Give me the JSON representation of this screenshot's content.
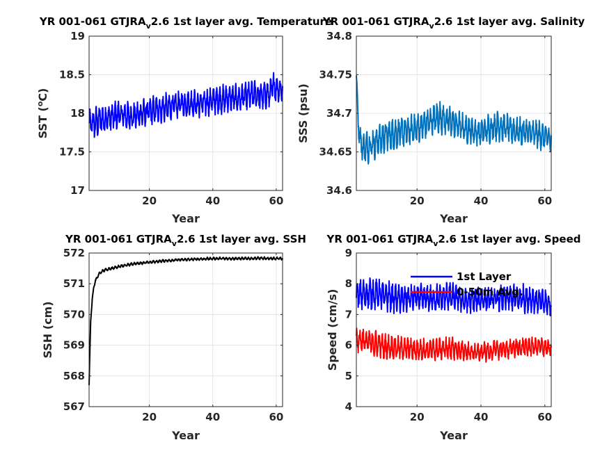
{
  "chart_data": [
    {
      "type": "line",
      "title": "YR 001-061 GTJRA",
      "title_sub": "v",
      "title_rest": "2.6 1st layer avg. Temperature",
      "xlabel": "Year",
      "ylabel": "SST (",
      "ylabel_sup": "o",
      "ylabel_end": "C)",
      "xlim": [
        1,
        62
      ],
      "ylim": [
        17,
        19
      ],
      "xticks": [
        "20",
        "40",
        "60"
      ],
      "yticks": [
        "17",
        "17.5",
        "18",
        "18.5",
        "19"
      ],
      "grid": true,
      "series": [
        {
          "color": "#0000ff",
          "style": "monthly",
          "x": [
            1,
            3,
            5,
            8,
            10,
            12,
            15,
            18,
            20,
            22,
            25,
            28,
            30,
            33,
            35,
            38,
            40,
            43,
            45,
            48,
            50,
            53,
            55,
            58,
            59,
            60,
            62
          ],
          "y": [
            17.85,
            17.88,
            17.92,
            17.95,
            17.98,
            17.97,
            17.96,
            18.0,
            18.02,
            18.05,
            18.07,
            18.1,
            18.12,
            18.13,
            18.12,
            18.14,
            18.17,
            18.18,
            18.2,
            18.19,
            18.22,
            18.24,
            18.23,
            18.25,
            18.35,
            18.33,
            18.3
          ],
          "amp": [
            0.2,
            0.23,
            0.22,
            0.22,
            0.21,
            0.22,
            0.2,
            0.2,
            0.2,
            0.2,
            0.2,
            0.2,
            0.19,
            0.2,
            0.19,
            0.19,
            0.2,
            0.2,
            0.19,
            0.2,
            0.2,
            0.2,
            0.2,
            0.2,
            0.22,
            0.2,
            0.18
          ]
        }
      ]
    },
    {
      "type": "line",
      "title": "YR 001-061 GTJRA",
      "title_sub": "v",
      "title_rest": "2.6 1st layer avg. Salinity",
      "xlabel": "Year",
      "ylabel": "SSS (psu)",
      "xlim": [
        1,
        62
      ],
      "ylim": [
        34.6,
        34.8
      ],
      "xticks": [
        "20",
        "40",
        "60"
      ],
      "yticks": [
        "34.6",
        "34.65",
        "34.7",
        "34.75",
        "34.8"
      ],
      "grid": true,
      "series": [
        {
          "color": "#0072bd",
          "style": "monthly",
          "x": [
            1,
            1.3,
            1.6,
            2,
            3,
            5,
            8,
            10,
            15,
            20,
            25,
            27,
            30,
            35,
            40,
            45,
            50,
            55,
            60,
            62
          ],
          "y": [
            34.75,
            34.72,
            34.69,
            34.67,
            34.655,
            34.658,
            34.665,
            34.67,
            34.675,
            34.68,
            34.692,
            34.695,
            34.69,
            34.68,
            34.675,
            34.685,
            34.678,
            34.675,
            34.67,
            34.665
          ],
          "amp": [
            0.004,
            0.01,
            0.015,
            0.02,
            0.022,
            0.024,
            0.024,
            0.024,
            0.022,
            0.022,
            0.022,
            0.024,
            0.022,
            0.02,
            0.02,
            0.022,
            0.02,
            0.02,
            0.02,
            0.02
          ]
        }
      ]
    },
    {
      "type": "line",
      "title": "YR 001-061 GTJRA",
      "title_sub": "v",
      "title_rest": "2.6 1st layer avg. SSH",
      "xlabel": "Year",
      "ylabel": "SSH (cm)",
      "xlim": [
        1,
        62
      ],
      "ylim": [
        567,
        572
      ],
      "xticks": [
        "20",
        "40",
        "60"
      ],
      "yticks": [
        "567",
        "568",
        "569",
        "570",
        "571",
        "572"
      ],
      "grid": true,
      "series": [
        {
          "color": "#000000",
          "style": "monthly",
          "x": [
            1,
            1.2,
            1.5,
            2,
            2.5,
            3,
            4,
            5,
            6,
            8,
            10,
            15,
            20,
            25,
            30,
            35,
            40,
            45,
            50,
            55,
            60,
            62
          ],
          "y": [
            567.7,
            568.6,
            569.8,
            570.5,
            570.9,
            571.1,
            571.3,
            571.4,
            571.45,
            571.5,
            571.55,
            571.65,
            571.7,
            571.75,
            571.78,
            571.8,
            571.82,
            571.82,
            571.82,
            571.83,
            571.82,
            571.82
          ],
          "amp": [
            0.0,
            0.03,
            0.04,
            0.05,
            0.05,
            0.05,
            0.05,
            0.05,
            0.05,
            0.05,
            0.05,
            0.05,
            0.05,
            0.05,
            0.05,
            0.05,
            0.05,
            0.05,
            0.05,
            0.05,
            0.05,
            0.05
          ]
        }
      ]
    },
    {
      "type": "line",
      "title": "YR 001-061 GTJRA",
      "title_sub": "v",
      "title_rest": "2.6 1st layer avg. Speed",
      "xlabel": "Year",
      "ylabel": "Speed (cm/s)",
      "xlim": [
        1,
        62
      ],
      "ylim": [
        4,
        9
      ],
      "xticks": [
        "20",
        "40",
        "60"
      ],
      "yticks": [
        "4",
        "5",
        "6",
        "7",
        "8",
        "9"
      ],
      "grid": true,
      "legend_position": "top-right",
      "series": [
        {
          "name": "1st Layer",
          "color": "#0000ff",
          "style": "monthly",
          "x": [
            1,
            5,
            10,
            15,
            20,
            25,
            30,
            35,
            40,
            45,
            50,
            55,
            60,
            62
          ],
          "y": [
            7.6,
            7.7,
            7.6,
            7.5,
            7.55,
            7.5,
            7.6,
            7.45,
            7.5,
            7.5,
            7.55,
            7.5,
            7.4,
            7.3
          ],
          "amp": [
            0.55,
            0.6,
            0.55,
            0.5,
            0.5,
            0.5,
            0.5,
            0.45,
            0.45,
            0.45,
            0.5,
            0.5,
            0.45,
            0.4
          ]
        },
        {
          "name": "0-50m Avg.",
          "color": "#ff0000",
          "style": "monthly",
          "x": [
            1,
            5,
            10,
            15,
            20,
            25,
            30,
            35,
            40,
            45,
            50,
            55,
            60,
            62
          ],
          "y": [
            6.2,
            6.1,
            5.95,
            5.9,
            5.85,
            5.85,
            5.9,
            5.8,
            5.75,
            5.85,
            5.9,
            5.95,
            5.95,
            5.85
          ],
          "amp": [
            0.45,
            0.5,
            0.45,
            0.4,
            0.4,
            0.4,
            0.4,
            0.35,
            0.35,
            0.35,
            0.35,
            0.35,
            0.35,
            0.3
          ]
        }
      ]
    }
  ]
}
